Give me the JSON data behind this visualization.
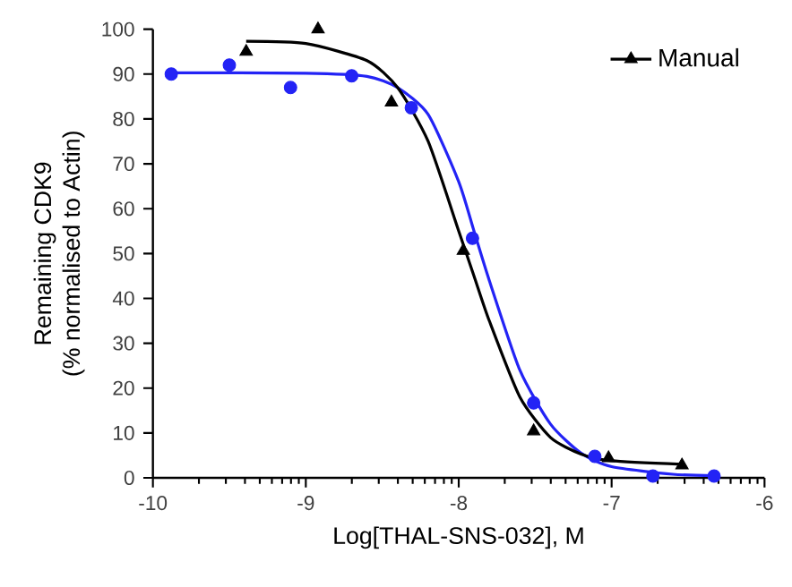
{
  "chart_data": {
    "type": "scatter",
    "xlabel": "Log[THAL-SNS-032], M",
    "ylabel": "Remaining CDK9\n(% normalised to Actin)",
    "xlim": [
      -10,
      -6
    ],
    "xticks": [
      -10,
      -9,
      -8,
      -7,
      -6
    ],
    "ylim": [
      0,
      100
    ],
    "yticks": [
      0,
      10,
      20,
      30,
      40,
      50,
      60,
      70,
      80,
      90,
      100
    ],
    "grid": false,
    "legend": "top right",
    "series": [
      {
        "color": "#2323f5",
        "marker": "circle",
        "x": [
          -9.88,
          -9.5,
          -9.1,
          -8.7,
          -8.31,
          -7.91,
          -7.51,
          -7.11,
          -6.73,
          -6.33
        ],
        "values": [
          90,
          92,
          87,
          89.6,
          82.5,
          53.4,
          16.7,
          4.8,
          0.4,
          0.4
        ]
      },
      {
        "type": "line",
        "color": "#2323f5",
        "marker": "none",
        "line_style": "solid",
        "x": [
          -9.88,
          -9,
          -8.6,
          -8.4,
          -8.2,
          -8,
          -7.9,
          -7.8,
          -7.6,
          -7.4,
          -7.2,
          -7,
          -6.6,
          -6.33
        ],
        "values": [
          90.3,
          90.2,
          89.5,
          87,
          81,
          66,
          55,
          44,
          24,
          12,
          5.5,
          2.5,
          0.8,
          0.5
        ]
      },
      {
        "name": "Manual",
        "color": "#000000",
        "marker": "triangle",
        "x": [
          -9.39,
          -8.92,
          -8.44,
          -7.97,
          -7.51,
          -7.02,
          -6.54
        ],
        "values": [
          95,
          100,
          83.7,
          50.6,
          10.4,
          4.4,
          2.8
        ]
      },
      {
        "type": "line",
        "color": "#000000",
        "marker": "none",
        "line_style": "solid",
        "x": [
          -9.39,
          -9,
          -8.6,
          -8.4,
          -8.2,
          -8,
          -7.9,
          -7.8,
          -7.6,
          -7.4,
          -7.2,
          -7,
          -6.54
        ],
        "values": [
          97.3,
          96.8,
          93,
          87,
          75,
          55,
          45,
          35,
          18,
          9,
          5.3,
          3.8,
          3
        ]
      }
    ]
  }
}
